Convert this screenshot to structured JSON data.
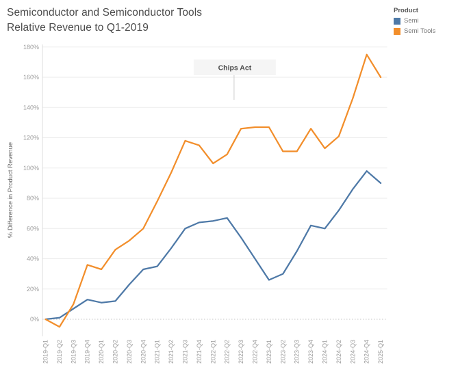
{
  "title": {
    "line1": "Semiconductor and Semiconductor Tools",
    "line2": "Relative Revenue to Q1-2019"
  },
  "legend": {
    "title": "Product",
    "items": [
      {
        "label": "Semi",
        "color": "#4e79a7"
      },
      {
        "label": "Semi Tools",
        "color": "#f28e2b"
      }
    ]
  },
  "annotation": {
    "label": "Chips Act",
    "x_index": 13.5
  },
  "y_axis": {
    "title": "% Difference in Product Revenue"
  },
  "chart_data": {
    "type": "line",
    "title": "Semiconductor and Semiconductor Tools Relative Revenue to Q1-2019",
    "xlabel": "",
    "ylabel": "% Difference in Product Revenue",
    "categories": [
      "2019-Q1",
      "2019-Q2",
      "2019-Q3",
      "2019-Q4",
      "2020-Q1",
      "2020-Q2",
      "2020-Q3",
      "2020-Q4",
      "2021-Q1",
      "2021-Q2",
      "2021-Q3",
      "2021-Q4",
      "2022-Q1",
      "2022-Q2",
      "2022-Q3",
      "2022-Q4",
      "2023-Q1",
      "2023-Q2",
      "2023-Q3",
      "2023-Q4",
      "2024-Q1",
      "2024-Q2",
      "2024-Q3",
      "2024-Q4",
      "2025-Q1"
    ],
    "series": [
      {
        "name": "Semi",
        "color": "#4e79a7",
        "values": [
          0,
          1,
          7,
          13,
          11,
          12,
          23,
          33,
          35,
          47,
          60,
          64,
          65,
          67,
          54,
          40,
          26,
          30,
          45,
          62,
          60,
          72,
          86,
          98,
          90
        ]
      },
      {
        "name": "Semi Tools",
        "color": "#f28e2b",
        "values": [
          0,
          -5,
          10,
          36,
          33,
          46,
          52,
          60,
          78,
          97,
          118,
          115,
          103,
          109,
          126,
          127,
          127,
          111,
          111,
          126,
          113,
          121,
          146,
          175,
          160
        ]
      }
    ],
    "y_ticks": [
      0,
      20,
      40,
      60,
      80,
      100,
      120,
      140,
      160,
      180
    ],
    "y_tick_suffix": "%",
    "ylim": [
      -12,
      182
    ],
    "grid": true,
    "legend_position": "top-right",
    "annotations": [
      {
        "label": "Chips Act",
        "x_index": 13.5
      }
    ]
  },
  "colors": {
    "grid": "#ebebeb",
    "zero_line": "#c4c4c4",
    "axis_line": "#dcdcdc",
    "tick_label": "#9b9b9b",
    "axis_title": "#666666",
    "annotation_bg": "#f5f5f5",
    "annotation_text": "#4a4a4a",
    "annotation_line": "#cccccc"
  }
}
